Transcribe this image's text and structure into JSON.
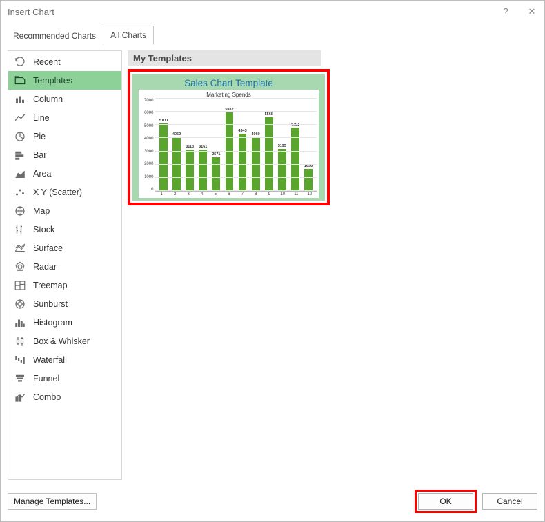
{
  "dialog": {
    "title": "Insert Chart"
  },
  "tabs": {
    "recommended": "Recommended Charts",
    "all": "All Charts",
    "active": "all"
  },
  "sidebar": {
    "items": [
      {
        "icon": "recent",
        "label": "Recent"
      },
      {
        "icon": "templates",
        "label": "Templates"
      },
      {
        "icon": "column",
        "label": "Column"
      },
      {
        "icon": "line",
        "label": "Line"
      },
      {
        "icon": "pie",
        "label": "Pie"
      },
      {
        "icon": "bar",
        "label": "Bar"
      },
      {
        "icon": "area",
        "label": "Area"
      },
      {
        "icon": "scatter",
        "label": "X Y (Scatter)"
      },
      {
        "icon": "map",
        "label": "Map"
      },
      {
        "icon": "stock",
        "label": "Stock"
      },
      {
        "icon": "surface",
        "label": "Surface"
      },
      {
        "icon": "radar",
        "label": "Radar"
      },
      {
        "icon": "treemap",
        "label": "Treemap"
      },
      {
        "icon": "sunburst",
        "label": "Sunburst"
      },
      {
        "icon": "histogram",
        "label": "Histogram"
      },
      {
        "icon": "boxw",
        "label": "Box & Whisker"
      },
      {
        "icon": "waterfall",
        "label": "Waterfall"
      },
      {
        "icon": "funnel",
        "label": "Funnel"
      },
      {
        "icon": "combo",
        "label": "Combo"
      }
    ],
    "selected_index": 1
  },
  "main": {
    "group_title": "My Templates",
    "template": {
      "caption": "Sales Chart Template",
      "chart": {
        "type": "bar",
        "title": "Marketing Spends",
        "title_fontsize": 8,
        "background_color": "#ffffff",
        "panel_bg": "#a8d8b0",
        "bar_color": "#5aa52e",
        "grid_color": "#e6e6e6",
        "axis_color": "#bbbbbb",
        "label_color": "#333333",
        "label_fontsize": 5.5,
        "tick_fontsize": 6,
        "categories": [
          "1",
          "2",
          "3",
          "4",
          "5",
          "6",
          "7",
          "8",
          "9",
          "10",
          "11",
          "12"
        ],
        "values": [
          5100,
          4059,
          3113,
          3161,
          2571,
          5932,
          4343,
          4060,
          5568,
          3195,
          4791,
          1656
        ],
        "ylim": [
          0,
          7000
        ],
        "ytick_step": 1000,
        "bar_width": 0.62,
        "highlight_border": "#ff0000"
      }
    }
  },
  "footer": {
    "manage": "Manage Templates...",
    "ok": "OK",
    "cancel": "Cancel",
    "ok_highlight": "#ff0000"
  }
}
